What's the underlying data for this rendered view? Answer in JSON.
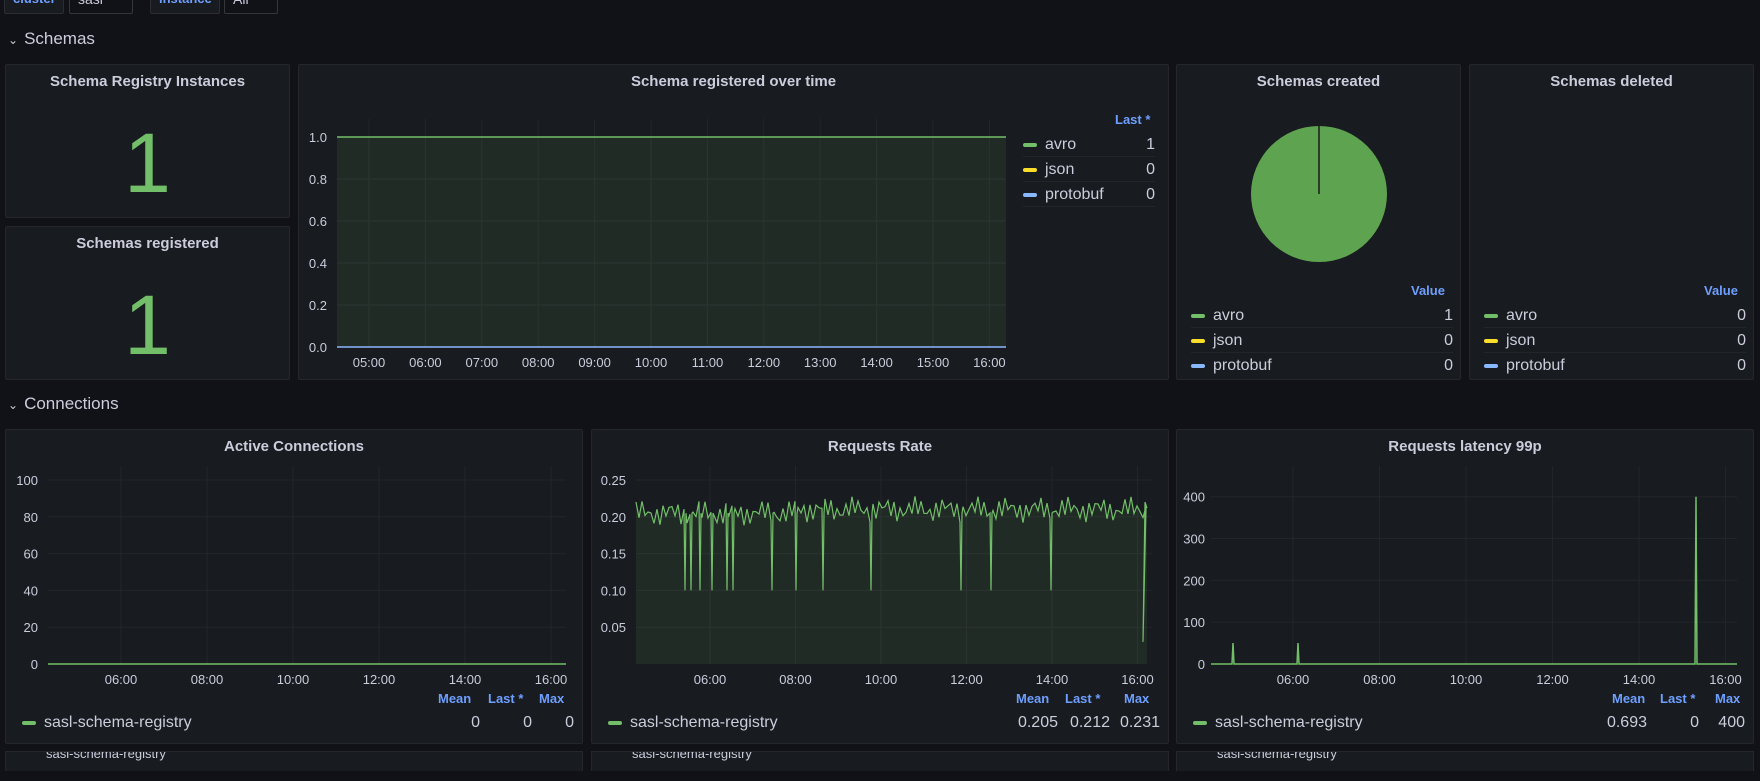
{
  "variables": [
    {
      "label": "cluster",
      "value": "sasl"
    },
    {
      "label": "instance",
      "value": "All"
    }
  ],
  "rows": {
    "schemas": {
      "title": "Schemas"
    },
    "connections": {
      "title": "Connections"
    }
  },
  "panels": {
    "sr_instances": {
      "title": "Schema Registry Instances",
      "value": "1"
    },
    "schemas_registered": {
      "title": "Schemas registered",
      "value": "1"
    },
    "registered_over_time": {
      "title": "Schema registered over time",
      "legend_header": "Last *"
    },
    "schemas_created": {
      "title": "Schemas created",
      "legend_header": "Value"
    },
    "schemas_deleted": {
      "title": "Schemas deleted",
      "legend_header": "Value"
    },
    "active_connections": {
      "title": "Active Connections"
    },
    "requests_rate": {
      "title": "Requests Rate"
    },
    "requests_latency": {
      "title": "Requests latency 99p"
    }
  },
  "legend_cols": {
    "mean": "Mean",
    "last": "Last *",
    "max": "Max"
  },
  "colors": {
    "green": "#73bf69",
    "yellow": "#fade2a",
    "blue": "#8ab8ff",
    "accent": "#6e9fff"
  },
  "series_legend": {
    "registered": [
      {
        "name": "avro",
        "color": "#73bf69",
        "value": "1"
      },
      {
        "name": "json",
        "color": "#fade2a",
        "value": "0"
      },
      {
        "name": "protobuf",
        "color": "#8ab8ff",
        "value": "0"
      }
    ],
    "created": [
      {
        "name": "avro",
        "color": "#73bf69",
        "value": "1"
      },
      {
        "name": "json",
        "color": "#fade2a",
        "value": "0"
      },
      {
        "name": "protobuf",
        "color": "#8ab8ff",
        "value": "0"
      }
    ],
    "deleted": [
      {
        "name": "avro",
        "color": "#73bf69",
        "value": "0"
      },
      {
        "name": "json",
        "color": "#fade2a",
        "value": "0"
      },
      {
        "name": "protobuf",
        "color": "#8ab8ff",
        "value": "0"
      }
    ]
  },
  "connection_legends": {
    "active": {
      "name": "sasl-schema-registry",
      "mean": "0",
      "last": "0",
      "max": "0"
    },
    "rate": {
      "name": "sasl-schema-registry",
      "mean": "0.205",
      "last": "0.212",
      "max": "0.231"
    },
    "latency": {
      "name": "sasl-schema-registry",
      "mean": "0.693",
      "last": "0",
      "max": "400"
    }
  },
  "cut_off_row_label": "sasl-schema-registry",
  "chart_data": [
    {
      "type": "line",
      "title": "Schema registered over time",
      "x": [
        "05:00",
        "06:00",
        "07:00",
        "08:00",
        "09:00",
        "10:00",
        "11:00",
        "12:00",
        "13:00",
        "14:00",
        "15:00",
        "16:00"
      ],
      "y_ticks": [
        "0.0",
        "0.2",
        "0.4",
        "0.6",
        "0.8",
        "1.0"
      ],
      "ylim": [
        0,
        1.0
      ],
      "series": [
        {
          "name": "avro",
          "values": [
            1,
            1,
            1,
            1,
            1,
            1,
            1,
            1,
            1,
            1,
            1,
            1
          ]
        },
        {
          "name": "json",
          "values": [
            0,
            0,
            0,
            0,
            0,
            0,
            0,
            0,
            0,
            0,
            0,
            0
          ]
        },
        {
          "name": "protobuf",
          "values": [
            0,
            0,
            0,
            0,
            0,
            0,
            0,
            0,
            0,
            0,
            0,
            0
          ]
        }
      ]
    },
    {
      "type": "pie",
      "title": "Schemas created",
      "categories": [
        "avro",
        "json",
        "protobuf"
      ],
      "values": [
        1,
        0,
        0
      ]
    },
    {
      "type": "line",
      "title": "Active Connections",
      "x": [
        "06:00",
        "08:00",
        "10:00",
        "12:00",
        "14:00",
        "16:00"
      ],
      "y_ticks": [
        "0",
        "20",
        "40",
        "60",
        "80",
        "100"
      ],
      "ylim": [
        0,
        100
      ],
      "series": [
        {
          "name": "sasl-schema-registry",
          "values": [
            0,
            0,
            0,
            0,
            0,
            0
          ]
        }
      ]
    },
    {
      "type": "line",
      "title": "Requests Rate",
      "x": [
        "06:00",
        "08:00",
        "10:00",
        "12:00",
        "14:00",
        "16:00"
      ],
      "y_ticks": [
        "0.05",
        "0.10",
        "0.15",
        "0.20",
        "0.25"
      ],
      "ylim": [
        0,
        0.25
      ],
      "series": [
        {
          "name": "sasl-schema-registry",
          "values": [
            0.205,
            0.21,
            0.212,
            0.208,
            0.212,
            0.212
          ],
          "dips_to": 0.1
        }
      ]
    },
    {
      "type": "line",
      "title": "Requests latency 99p",
      "x": [
        "06:00",
        "08:00",
        "10:00",
        "12:00",
        "14:00",
        "16:00"
      ],
      "y_ticks": [
        "0",
        "100",
        "200",
        "300",
        "400"
      ],
      "ylim": [
        0,
        440
      ],
      "series": [
        {
          "name": "sasl-schema-registry",
          "values": [
            0,
            0,
            0,
            0,
            0,
            0
          ],
          "spikes": [
            50,
            50,
            400
          ]
        }
      ]
    }
  ]
}
